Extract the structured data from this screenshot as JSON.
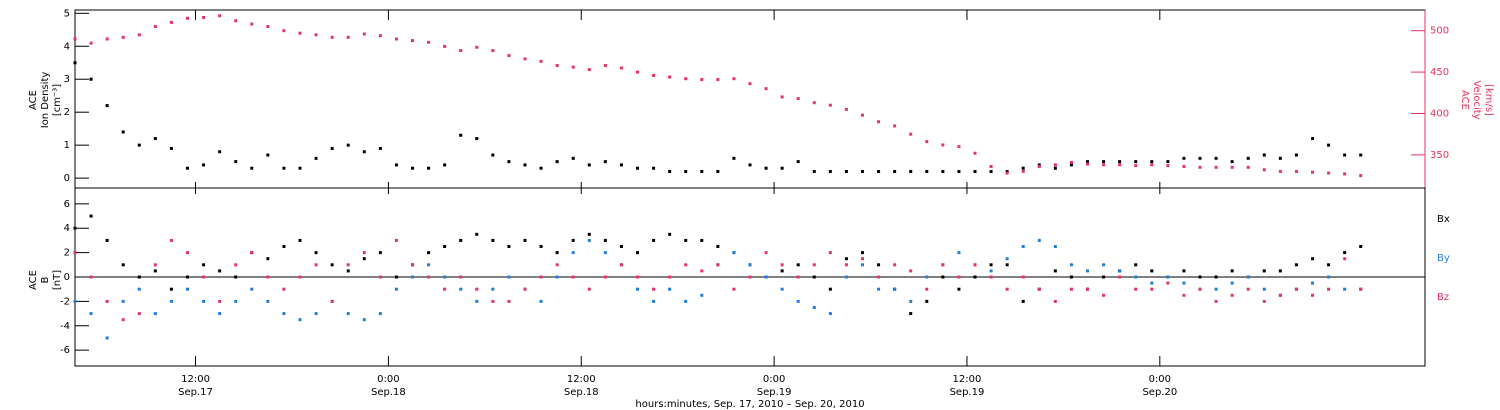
{
  "chart_data": [
    {
      "type": "scatter",
      "panel": "top",
      "ylabel_left": [
        "ACE",
        "Ion Density",
        "[cm⁻³]"
      ],
      "ylabel_right": [
        "ACE",
        "Velocity",
        "[km/s]"
      ],
      "ylim_left": [
        -0.3,
        5.1
      ],
      "yticks_left": [
        0,
        1,
        2,
        3,
        4,
        5
      ],
      "ylim_right": [
        310,
        525
      ],
      "yticks_right": [
        350,
        400,
        450,
        500
      ],
      "right_axis_color": "#e8335f",
      "xlim_hours": [
        0,
        84
      ],
      "series": [
        {
          "name": "Ion Density",
          "axis": "left",
          "color": "#000000",
          "x": [
            0,
            1,
            2,
            3,
            4,
            5,
            6,
            7,
            8,
            9,
            10,
            11,
            12,
            13,
            14,
            15,
            16,
            17,
            18,
            19,
            20,
            21,
            22,
            23,
            24,
            25,
            26,
            27,
            28,
            29,
            30,
            31,
            32,
            33,
            34,
            35,
            36,
            37,
            38,
            39,
            40,
            41,
            42,
            43,
            44,
            45,
            46,
            47,
            48,
            49,
            50,
            51,
            52,
            53,
            54,
            55,
            56,
            57,
            58,
            59,
            60,
            61,
            62,
            63,
            64,
            65,
            66,
            67,
            68,
            69,
            70,
            71,
            72,
            73,
            74,
            75,
            76,
            77,
            78,
            79,
            80
          ],
          "y": [
            3.5,
            3.0,
            2.2,
            1.4,
            1.0,
            1.2,
            0.9,
            0.3,
            0.4,
            0.8,
            0.5,
            0.3,
            0.7,
            0.3,
            0.3,
            0.6,
            0.9,
            1.0,
            0.8,
            0.9,
            0.4,
            0.3,
            0.3,
            0.4,
            1.3,
            1.2,
            0.7,
            0.5,
            0.4,
            0.3,
            0.5,
            0.6,
            0.4,
            0.5,
            0.4,
            0.3,
            0.3,
            0.2,
            0.2,
            0.2,
            0.2,
            0.6,
            0.4,
            0.3,
            0.3,
            0.5,
            0.2,
            0.2,
            0.2,
            0.2,
            0.2,
            0.2,
            0.2,
            0.2,
            0.2,
            0.2,
            0.2,
            0.2,
            0.2,
            0.3,
            0.4,
            0.3,
            0.4,
            0.5,
            0.5,
            0.5,
            0.5,
            0.5,
            0.5,
            0.6,
            0.6,
            0.6,
            0.5,
            0.6,
            0.7,
            0.6,
            0.7,
            1.2,
            1.0,
            0.7,
            0.7
          ]
        },
        {
          "name": "Velocity",
          "axis": "right",
          "color": "#e8335f",
          "x": [
            0,
            1,
            2,
            3,
            4,
            5,
            6,
            7,
            8,
            9,
            10,
            11,
            12,
            13,
            14,
            15,
            16,
            17,
            18,
            19,
            20,
            21,
            22,
            23,
            24,
            25,
            26,
            27,
            28,
            29,
            30,
            31,
            32,
            33,
            34,
            35,
            36,
            37,
            38,
            39,
            40,
            41,
            42,
            43,
            44,
            45,
            46,
            47,
            48,
            49,
            50,
            51,
            52,
            53,
            54,
            55,
            56,
            57,
            58,
            59,
            60,
            61,
            62,
            63,
            64,
            65,
            66,
            67,
            68,
            69,
            70,
            71,
            72,
            73,
            74,
            75,
            76,
            77,
            78,
            79,
            80
          ],
          "y": [
            490,
            485,
            490,
            492,
            495,
            505,
            510,
            515,
            516,
            518,
            512,
            508,
            505,
            500,
            497,
            495,
            492,
            492,
            496,
            494,
            490,
            488,
            486,
            481,
            476,
            480,
            476,
            470,
            466,
            463,
            458,
            456,
            453,
            458,
            455,
            450,
            446,
            444,
            442,
            441,
            441,
            442,
            436,
            430,
            420,
            418,
            413,
            410,
            405,
            398,
            390,
            385,
            375,
            366,
            362,
            360,
            352,
            336,
            328,
            330,
            336,
            338,
            341,
            339,
            338,
            338,
            337,
            338,
            337,
            336,
            335,
            335,
            335,
            335,
            332,
            330,
            330,
            329,
            328,
            327,
            325
          ]
        }
      ]
    },
    {
      "type": "scatter",
      "panel": "bottom",
      "ylabel_left": [
        "ACE",
        "B",
        "[nT]"
      ],
      "ylim": [
        -7.3,
        7.3
      ],
      "yticks": [
        -6,
        -4,
        -2,
        0,
        2,
        4,
        6
      ],
      "zero_line": true,
      "xlim_hours": [
        0,
        84
      ],
      "series": [
        {
          "name": "Bx",
          "color": "#000000",
          "x": [
            0,
            1,
            2,
            3,
            4,
            5,
            6,
            7,
            8,
            9,
            10,
            11,
            12,
            13,
            14,
            15,
            16,
            17,
            18,
            19,
            20,
            21,
            22,
            23,
            24,
            25,
            26,
            27,
            28,
            29,
            30,
            31,
            32,
            33,
            34,
            35,
            36,
            37,
            38,
            39,
            40,
            41,
            42,
            43,
            44,
            45,
            46,
            47,
            48,
            49,
            50,
            51,
            52,
            53,
            54,
            55,
            56,
            57,
            58,
            59,
            60,
            61,
            62,
            63,
            64,
            65,
            66,
            67,
            68,
            69,
            70,
            71,
            72,
            73,
            74,
            75,
            76,
            77,
            78,
            79,
            80
          ],
          "y": [
            4.0,
            5.0,
            3.0,
            1.0,
            0.0,
            0.5,
            -1.0,
            0.0,
            1.0,
            0.5,
            0.0,
            2.0,
            1.5,
            2.5,
            3.0,
            2.0,
            1.0,
            0.5,
            1.5,
            2.0,
            0.0,
            1.0,
            2.0,
            2.5,
            3.0,
            3.5,
            3.0,
            2.5,
            3.0,
            2.5,
            2.0,
            3.0,
            3.5,
            3.0,
            2.5,
            2.0,
            3.0,
            3.5,
            3.0,
            3.0,
            2.5,
            2.0,
            1.0,
            0.0,
            0.5,
            1.0,
            0.0,
            -1.0,
            1.5,
            2.0,
            1.0,
            -1.0,
            -3.0,
            -2.0,
            0.0,
            -1.0,
            0.0,
            1.0,
            1.0,
            -2.0,
            -1.0,
            0.5,
            0.0,
            -1.0,
            0.0,
            0.5,
            1.0,
            0.5,
            0.0,
            0.5,
            0.0,
            0.0,
            0.5,
            0.0,
            0.5,
            0.5,
            1.0,
            1.5,
            1.0,
            2.0,
            2.5
          ]
        },
        {
          "name": "By",
          "color": "#1f7fdc",
          "x": [
            0,
            1,
            2,
            3,
            4,
            5,
            6,
            7,
            8,
            9,
            10,
            11,
            12,
            13,
            14,
            15,
            16,
            17,
            18,
            19,
            20,
            21,
            22,
            23,
            24,
            25,
            26,
            27,
            28,
            29,
            30,
            31,
            32,
            33,
            34,
            35,
            36,
            37,
            38,
            39,
            40,
            41,
            42,
            43,
            44,
            45,
            46,
            47,
            48,
            49,
            50,
            51,
            52,
            53,
            54,
            55,
            56,
            57,
            58,
            59,
            60,
            61,
            62,
            63,
            64,
            65,
            66,
            67,
            68,
            69,
            70,
            71,
            72,
            73,
            74,
            75,
            76,
            77,
            78,
            79,
            80
          ],
          "y": [
            -2.0,
            -3.0,
            -5.0,
            -2.0,
            -1.0,
            -3.0,
            -2.0,
            -1.0,
            -2.0,
            -3.0,
            -2.0,
            -1.0,
            -2.0,
            -3.0,
            -3.5,
            -3.0,
            -2.0,
            -3.0,
            -3.5,
            -3.0,
            -1.0,
            0.0,
            1.0,
            0.0,
            -1.0,
            -2.0,
            -1.0,
            0.0,
            -1.0,
            -2.0,
            0.0,
            2.0,
            3.0,
            2.0,
            1.0,
            -1.0,
            -2.0,
            -1.0,
            -2.0,
            -1.5,
            1.0,
            2.0,
            1.0,
            0.0,
            -1.0,
            -2.0,
            -2.5,
            -3.0,
            0.0,
            1.0,
            -1.0,
            -1.0,
            -2.0,
            0.0,
            1.0,
            2.0,
            1.0,
            0.5,
            1.5,
            2.5,
            3.0,
            2.5,
            1.0,
            0.5,
            1.0,
            0.5,
            0.0,
            -0.5,
            0.0,
            -0.5,
            -1.0,
            -1.0,
            -0.5,
            0.0,
            -1.0,
            -1.5,
            -1.0,
            -0.5,
            0.0,
            -1.0,
            -1.0
          ]
        },
        {
          "name": "Bz",
          "color": "#e8335f",
          "x": [
            0,
            1,
            2,
            3,
            4,
            5,
            6,
            7,
            8,
            9,
            10,
            11,
            12,
            13,
            14,
            15,
            16,
            17,
            18,
            19,
            20,
            21,
            22,
            23,
            24,
            25,
            26,
            27,
            28,
            29,
            30,
            31,
            32,
            33,
            34,
            35,
            36,
            37,
            38,
            39,
            40,
            41,
            42,
            43,
            44,
            45,
            46,
            47,
            48,
            49,
            50,
            51,
            52,
            53,
            54,
            55,
            56,
            57,
            58,
            59,
            60,
            61,
            62,
            63,
            64,
            65,
            66,
            67,
            68,
            69,
            70,
            71,
            72,
            73,
            74,
            75,
            76,
            77,
            78,
            79,
            80
          ],
          "y": [
            2.0,
            0.0,
            -2.0,
            -3.5,
            -3.0,
            1.0,
            3.0,
            2.0,
            0.0,
            -2.0,
            1.0,
            2.0,
            0.0,
            -1.0,
            0.0,
            1.0,
            -2.0,
            1.0,
            2.0,
            0.0,
            3.0,
            1.0,
            0.0,
            -1.0,
            0.0,
            -1.0,
            -2.0,
            -2.0,
            -1.0,
            0.0,
            1.0,
            0.0,
            -1.0,
            0.0,
            1.0,
            0.0,
            -1.0,
            0.0,
            1.0,
            0.5,
            1.0,
            -1.0,
            0.0,
            2.0,
            1.0,
            0.0,
            1.0,
            2.0,
            1.0,
            1.5,
            0.0,
            1.0,
            0.5,
            -1.0,
            1.0,
            0.0,
            1.0,
            0.0,
            -1.0,
            0.0,
            -1.0,
            -2.0,
            -1.0,
            -1.0,
            -1.5,
            0.0,
            -1.0,
            -1.0,
            -0.5,
            -1.5,
            -1.0,
            -2.0,
            -1.5,
            -1.0,
            -2.0,
            -1.5,
            -1.0,
            -1.5,
            -1.0,
            1.5,
            -1.0
          ]
        }
      ],
      "legend": [
        "Bx",
        "By",
        "Bz"
      ]
    }
  ],
  "x_axis": {
    "ticks": [
      {
        "hour": 7.5,
        "time": "12:00",
        "date": "Sep.17"
      },
      {
        "hour": 19.5,
        "time": "0:00",
        "date": "Sep.18"
      },
      {
        "hour": 31.5,
        "time": "12:00",
        "date": "Sep.18"
      },
      {
        "hour": 43.5,
        "time": "0:00",
        "date": "Sep.19"
      },
      {
        "hour": 55.5,
        "time": "12:00",
        "date": "Sep.19"
      },
      {
        "hour": 67.5,
        "time": "0:00",
        "date": "Sep.20"
      }
    ],
    "label": "hours:minutes, Sep. 17, 2010 – Sep. 20, 2010"
  }
}
